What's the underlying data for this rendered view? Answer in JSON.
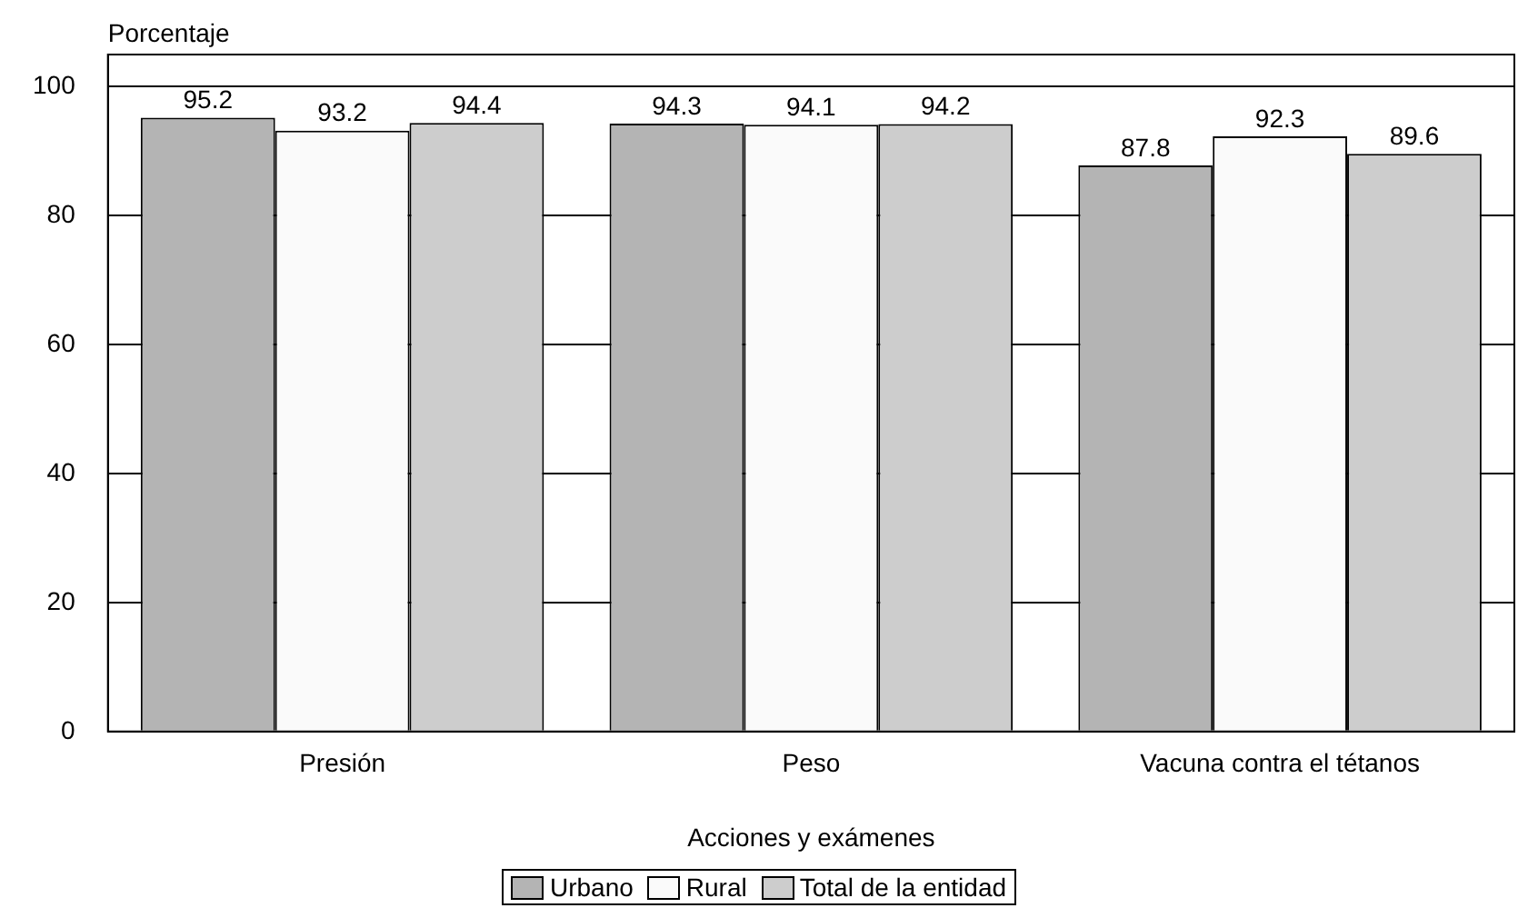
{
  "chart_data": {
    "type": "bar",
    "ylabel": "Porcentaje",
    "xlabel": "Acciones y exámenes",
    "categories": [
      "Presión",
      "Peso",
      "Vacuna contra el tétanos"
    ],
    "series": [
      {
        "name": "Urbano",
        "color": "#b4b4b4",
        "values": [
          95.2,
          94.3,
          87.8
        ]
      },
      {
        "name": "Rural",
        "color": "#fafafa",
        "values": [
          93.2,
          94.1,
          92.3
        ]
      },
      {
        "name": "Total de la entidad",
        "color": "#cdcdcd",
        "values": [
          94.4,
          94.2,
          89.6
        ]
      }
    ],
    "ylim": [
      0,
      105
    ],
    "yticks": [
      0,
      20,
      40,
      60,
      80,
      100
    ],
    "grid": "y",
    "legend": "bottom",
    "data_labels": true
  }
}
